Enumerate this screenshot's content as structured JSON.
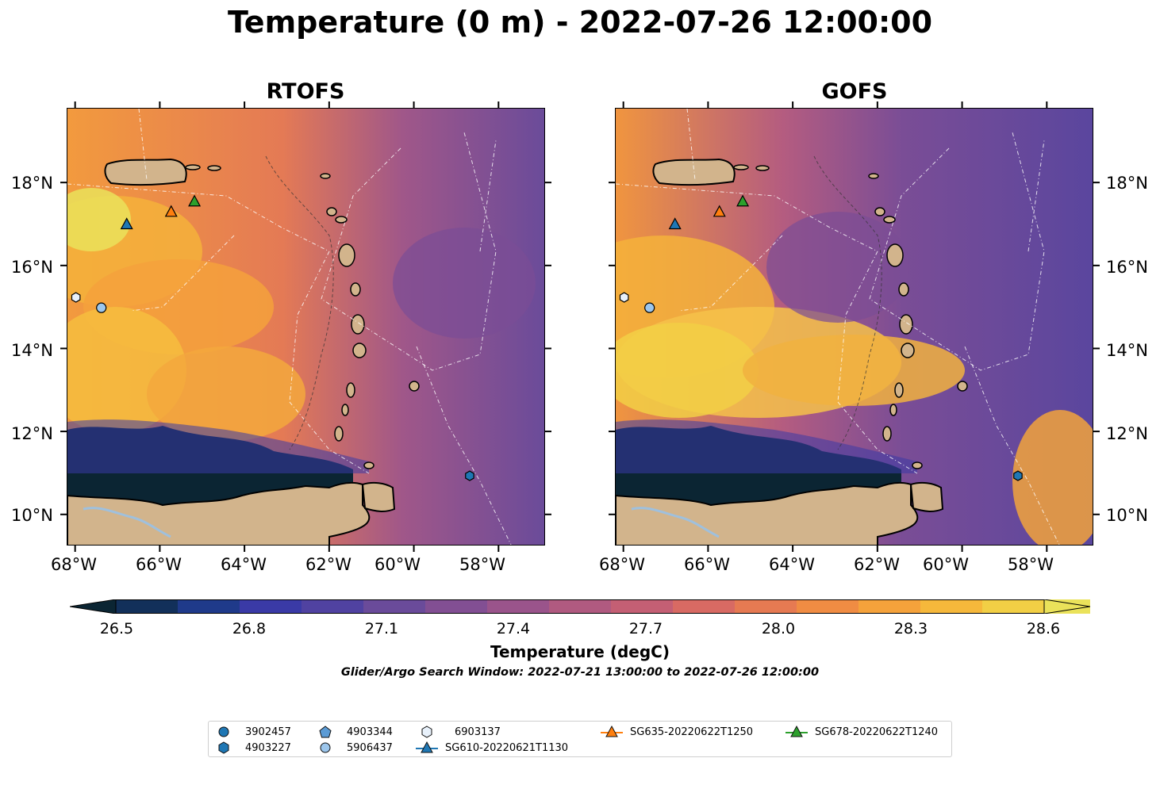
{
  "title": "Temperature (0 m) - 2022-07-26 12:00:00",
  "panels": [
    {
      "title": "RTOFS",
      "model": "rtofs"
    },
    {
      "title": "GOFS",
      "model": "gofs"
    }
  ],
  "axes": {
    "lon_ticks": [
      "68°W",
      "66°W",
      "64°W",
      "62°W",
      "60°W",
      "58°W"
    ],
    "lat_ticks": [
      "18°N",
      "16°N",
      "14°N",
      "12°N",
      "10°N"
    ],
    "lon_range": [
      -68.2,
      -56.9
    ],
    "lat_range": [
      9.25,
      19.8
    ]
  },
  "colorbar": {
    "ticks": [
      "26.5",
      "26.8",
      "27.1",
      "27.4",
      "27.7",
      "28.0",
      "28.3",
      "28.6"
    ],
    "range": [
      26.4,
      28.7
    ],
    "extend": "both",
    "colormap": "thermal",
    "label": "Temperature (degC)"
  },
  "subtitle": "Glider/Argo Search Window: 2022-07-21 13:00:00 to 2022-07-26 12:00:00",
  "colors": {
    "land": "#d2b48c",
    "lake": "#9fc0dd",
    "cold": "#0b2533",
    "warm": "#f2a33c"
  },
  "legend": [
    {
      "label": "3902457",
      "marker": "circle",
      "color": "#1f77b4"
    },
    {
      "label": "4903227",
      "marker": "hexagon",
      "color": "#1f77b4"
    },
    {
      "label": "4903344",
      "marker": "pentagon",
      "color": "#5b9bd5"
    },
    {
      "label": "5906437",
      "marker": "circle",
      "color": "#9cc6ec"
    },
    {
      "label": "6903137",
      "marker": "hexagon",
      "color": "#e8f1fb"
    },
    {
      "label": "SG610-20220621T1130",
      "marker": "triangle-line",
      "color": "#1f77b4"
    },
    {
      "label": "SG635-20220622T1250",
      "marker": "triangle-line",
      "color": "#ff7f0e"
    },
    {
      "label": "SG678-20220622T1240",
      "marker": "triangle-line",
      "color": "#2ca02c"
    }
  ],
  "markers": [
    {
      "id": "SG610-20220621T1130",
      "lon": -66.8,
      "lat": 17.0,
      "shape": "triangle",
      "color": "#1f77b4"
    },
    {
      "id": "SG635-20220622T1250",
      "lon": -65.75,
      "lat": 17.3,
      "shape": "triangle",
      "color": "#ff7f0e"
    },
    {
      "id": "SG678-20220622T1240",
      "lon": -65.2,
      "lat": 17.55,
      "shape": "triangle",
      "color": "#2ca02c"
    },
    {
      "id": "5906437",
      "lon": -67.4,
      "lat": 15.0,
      "shape": "circle",
      "color": "#9cc6ec"
    },
    {
      "id": "6903137",
      "lon": -68.0,
      "lat": 15.25,
      "shape": "hexagon",
      "color": "#e8f1fb"
    },
    {
      "id": "4903227",
      "lon": -58.7,
      "lat": 10.95,
      "shape": "hexagon",
      "color": "#1f77b4"
    }
  ]
}
